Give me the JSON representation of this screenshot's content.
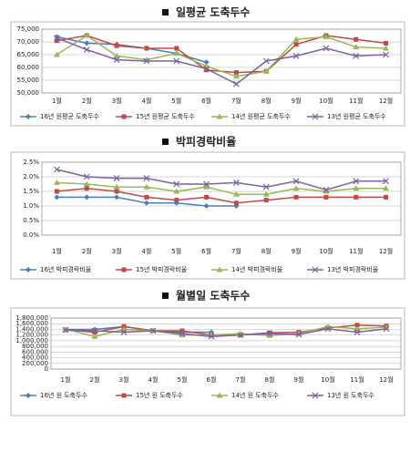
{
  "chart_data": [
    {
      "type": "line",
      "title": "일평균 도축두수",
      "categories": [
        "1월",
        "2월",
        "3월",
        "4월",
        "5월",
        "6월",
        "7월",
        "8월",
        "9월",
        "10월",
        "11월",
        "12월"
      ],
      "ylim": [
        50000,
        75000
      ],
      "yticks": [
        {
          "value": 50000,
          "label": "50,000"
        },
        {
          "value": 55000,
          "label": "55,000"
        },
        {
          "value": 60000,
          "label": "60,000"
        },
        {
          "value": 65000,
          "label": "65,000"
        },
        {
          "value": 70000,
          "label": "70,000"
        },
        {
          "value": 75000,
          "label": "75,000"
        }
      ],
      "grid": true,
      "legend": "bottom",
      "series": [
        {
          "name": "16년 원평균 도축두수",
          "color": "#4a7ebb",
          "marker": "diamond",
          "values": [
            72000,
            69500,
            69000,
            67500,
            65500,
            62000,
            null,
            null,
            null,
            null,
            null,
            null
          ]
        },
        {
          "name": "15년 원평균 도축두수",
          "color": "#be4b48",
          "marker": "square",
          "values": [
            70500,
            72500,
            68500,
            67500,
            67500,
            59000,
            58000,
            58500,
            69000,
            72500,
            71000,
            69500
          ]
        },
        {
          "name": "14년 원평균 도축두수",
          "color": "#98b954",
          "marker": "triangle",
          "values": [
            65000,
            72500,
            64500,
            63000,
            65500,
            60500,
            56500,
            58500,
            71000,
            72000,
            68000,
            67500
          ]
        },
        {
          "name": "13년 원평균 도축두수",
          "color": "#7d60a0",
          "marker": "x",
          "values": [
            71500,
            67000,
            63000,
            62500,
            62500,
            59500,
            53500,
            62500,
            64500,
            67500,
            64500,
            65000
          ]
        }
      ]
    },
    {
      "type": "line",
      "title": "박피경락비율",
      "categories": [
        "1월",
        "2월",
        "3월",
        "4월",
        "5월",
        "6월",
        "7월",
        "8월",
        "9월",
        "10월",
        "11월",
        "12월"
      ],
      "ylim": [
        0,
        2.5
      ],
      "yticks": [
        {
          "value": 0,
          "label": "0.0%"
        },
        {
          "value": 0.5,
          "label": "0.5%"
        },
        {
          "value": 1,
          "label": "1.0%"
        },
        {
          "value": 1.5,
          "label": "1.5%"
        },
        {
          "value": 2,
          "label": "2.0%"
        },
        {
          "value": 2.5,
          "label": "2.5%"
        }
      ],
      "grid": true,
      "legend": "bottom",
      "series": [
        {
          "name": "16년 박피경락비율",
          "color": "#4a7ebb",
          "marker": "diamond",
          "values": [
            1.3,
            1.3,
            1.3,
            1.1,
            1.1,
            1.0,
            1.0,
            null,
            null,
            null,
            null,
            null
          ]
        },
        {
          "name": "15년 박피경락비율",
          "color": "#be4b48",
          "marker": "square",
          "values": [
            1.5,
            1.6,
            1.5,
            1.3,
            1.2,
            1.3,
            1.1,
            1.2,
            1.3,
            1.3,
            1.3,
            1.3
          ]
        },
        {
          "name": "14년 박피경락비율",
          "color": "#98b954",
          "marker": "triangle",
          "values": [
            1.8,
            1.75,
            1.65,
            1.65,
            1.5,
            1.65,
            1.4,
            1.4,
            1.6,
            1.5,
            1.6,
            1.6
          ]
        },
        {
          "name": "13년 박피경락비율",
          "color": "#7d60a0",
          "marker": "x",
          "values": [
            2.25,
            2.0,
            1.95,
            1.95,
            1.75,
            1.75,
            1.8,
            1.65,
            1.85,
            1.55,
            1.85,
            1.85
          ]
        }
      ]
    },
    {
      "type": "line",
      "title": "월별일 도축두수",
      "categories": [
        "1월",
        "2월",
        "3월",
        "4월",
        "5월",
        "6월",
        "7월",
        "8월",
        "9월",
        "10월",
        "11월",
        "12월"
      ],
      "ylim": [
        0,
        1800000
      ],
      "yticks": [
        {
          "value": 0,
          "label": "0"
        },
        {
          "value": 200000,
          "label": "200,000"
        },
        {
          "value": 400000,
          "label": "400,000"
        },
        {
          "value": 600000,
          "label": "600,000"
        },
        {
          "value": 800000,
          "label": "800,000"
        },
        {
          "value": 1000000,
          "label": "1,000,000"
        },
        {
          "value": 1200000,
          "label": "1,200,000"
        },
        {
          "value": 1400000,
          "label": "1,400,000"
        },
        {
          "value": 1600000,
          "label": "1,600,000"
        },
        {
          "value": 1800000,
          "label": "1,800,000"
        }
      ],
      "grid": true,
      "legend": "bottom",
      "series": [
        {
          "name": "16년 원 도축두수",
          "color": "#4a7ebb",
          "marker": "diamond",
          "values": [
            1400000,
            1400000,
            1500000,
            1350000,
            1300000,
            1300000,
            null,
            null,
            null,
            null,
            null,
            null
          ]
        },
        {
          "name": "15년 원 도축두수",
          "color": "#be4b48",
          "marker": "square",
          "values": [
            1380000,
            1300000,
            1500000,
            1350000,
            1350000,
            1200000,
            1200000,
            1280000,
            1300000,
            1450000,
            1550000,
            1520000
          ]
        },
        {
          "name": "14년 원 도축두수",
          "color": "#98b954",
          "marker": "triangle",
          "values": [
            1400000,
            1150000,
            1400000,
            1350000,
            1200000,
            1200000,
            1250000,
            1180000,
            1250000,
            1500000,
            1420000,
            1480000
          ]
        },
        {
          "name": "13년 원 도축두수",
          "color": "#7d60a0",
          "marker": "x",
          "values": [
            1380000,
            1350000,
            1300000,
            1350000,
            1250000,
            1150000,
            1200000,
            1250000,
            1220000,
            1420000,
            1300000,
            1420000
          ]
        }
      ]
    }
  ]
}
